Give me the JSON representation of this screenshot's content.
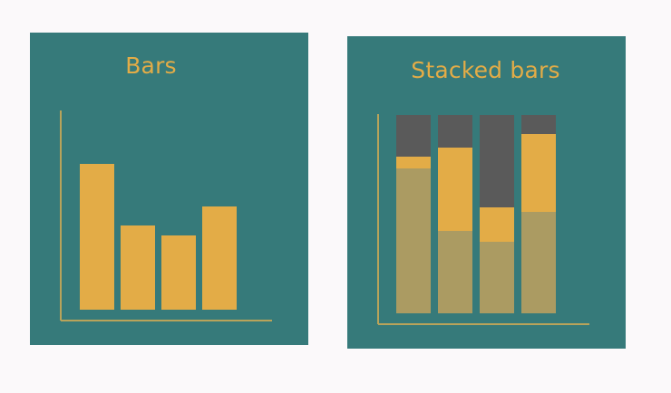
{
  "colors": {
    "background": "#fbf9fa",
    "panel": "#367a7a",
    "bar": "#e3ac47",
    "stack_bottom": "#ab9b62",
    "stack_middle": "#e3ac47",
    "stack_top": "#5a5a5a",
    "axis": "#b9a35a"
  },
  "chart_data": [
    {
      "type": "bar",
      "title": "Bars",
      "categories": [
        "",
        "",
        "",
        ""
      ],
      "values": [
        161,
        93,
        82,
        114
      ],
      "ylim": [
        0,
        220
      ],
      "grid": false,
      "legend": "none"
    },
    {
      "type": "bar",
      "stacked": true,
      "title": "Stacked bars",
      "categories": [
        "",
        "",
        "",
        ""
      ],
      "series": [
        {
          "values": [
            160,
            91,
            79,
            112
          ]
        },
        {
          "values": [
            13,
            92,
            38,
            86
          ]
        },
        {
          "values": [
            46,
            36,
            102,
            21
          ]
        }
      ],
      "ylim": [
        0,
        230
      ],
      "grid": false,
      "legend": "none"
    }
  ]
}
